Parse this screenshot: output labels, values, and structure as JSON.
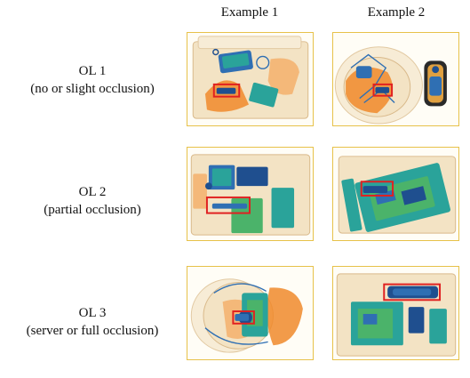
{
  "columns": [
    "Example 1",
    "Example 2"
  ],
  "rows": [
    {
      "title": "OL 1",
      "subtitle": "(no or slight occlusion)"
    },
    {
      "title": "OL 2",
      "subtitle": "(partial occlusion)"
    },
    {
      "title": "OL 3",
      "subtitle": "(server or full occlusion)"
    }
  ],
  "colors": {
    "panel_border": "#e7c24a",
    "bbox": "#e02020",
    "orange": "#f08a2c",
    "blue": "#2f6fb3"
  }
}
